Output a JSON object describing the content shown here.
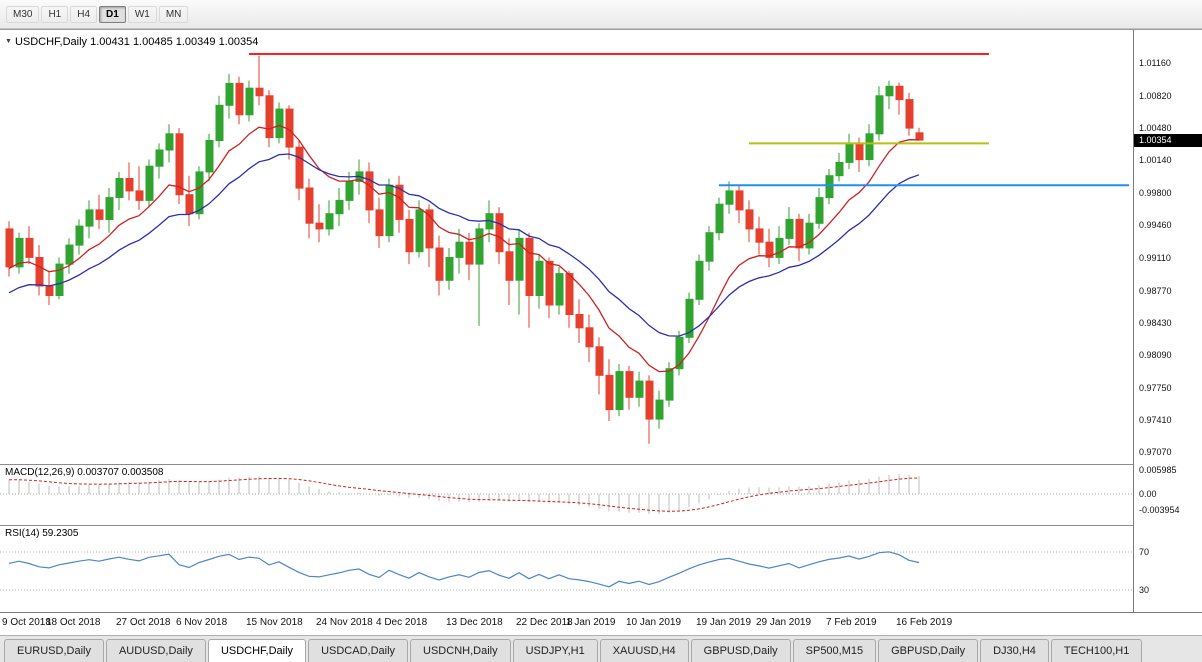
{
  "toolbar": {
    "timeframes": [
      {
        "label": "M30",
        "active": false
      },
      {
        "label": "H1",
        "active": false
      },
      {
        "label": "H4",
        "active": false
      },
      {
        "label": "D1",
        "active": true
      },
      {
        "label": "W1",
        "active": false
      },
      {
        "label": "MN",
        "active": false
      }
    ]
  },
  "chart": {
    "title_symbol": "USDCHF,Daily",
    "title_ohlc": "1.00431 1.00485 1.00349 1.00354",
    "current_price": "1.00354",
    "price_axis_labels": [
      "1.01160",
      "1.00820",
      "1.00480",
      "1.00140",
      "0.99800",
      "0.99460",
      "0.99110",
      "0.98770",
      "0.98430",
      "0.98090",
      "0.97750",
      "0.97410",
      "0.97070"
    ],
    "colors": {
      "bull": "#30a330",
      "bear": "#e5402e",
      "ma_fast": "#cc2222",
      "ma_slow": "#2f2fae",
      "hline_red": "#ff1f1f",
      "hline_yellow": "#b7bf10",
      "hline_blue": "#2090ef",
      "macd_hist": "#bcbcbc",
      "macd_signal": "#cc2222",
      "rsi": "#4a86c8",
      "badge_bg": "#000000"
    }
  },
  "macd": {
    "label": "MACD(12,26,9) 0.003707 0.003508",
    "axis_labels": [
      "0.005985",
      "0.00",
      "-0.003954"
    ],
    "params": {
      "fast": 12,
      "slow": 26,
      "signal": 9,
      "seed_fast": 0.992,
      "seed_slow": 0.988
    }
  },
  "rsi": {
    "label": "RSI(14) 59.2305",
    "axis_labels": [
      "70",
      "30"
    ],
    "levels": [
      70,
      30
    ],
    "period": 14,
    "current": 59.2305
  },
  "tabs": {
    "items": [
      {
        "label": "EURUSD,Daily",
        "active": false
      },
      {
        "label": "AUDUSD,Daily",
        "active": false
      },
      {
        "label": "USDCHF,Daily",
        "active": true
      },
      {
        "label": "USDCAD,Daily",
        "active": false
      },
      {
        "label": "USDCNH,Daily",
        "active": false
      },
      {
        "label": "USDJPY,H1",
        "active": false
      },
      {
        "label": "XAUUSD,H4",
        "active": false
      },
      {
        "label": "GBPUSD,Daily",
        "active": false
      },
      {
        "label": "SP500,M15",
        "active": false
      },
      {
        "label": "GBPUSD,Daily",
        "active": false
      },
      {
        "label": "DJ30,H4",
        "active": false
      },
      {
        "label": "TECH100,H1",
        "active": false
      }
    ]
  },
  "chart_data": {
    "type": "candlestick",
    "symbol": "USDCHF",
    "timeframe": "Daily",
    "y_axis": {
      "min": 0.9699,
      "max": 1.0147
    },
    "dates": [
      "2018.10.09",
      "2018.10.10",
      "2018.10.11",
      "2018.10.12",
      "2018.10.15",
      "2018.10.16",
      "2018.10.17",
      "2018.10.18",
      "2018.10.19",
      "2018.10.22",
      "2018.10.23",
      "2018.10.24",
      "2018.10.25",
      "2018.10.26",
      "2018.10.29",
      "2018.10.30",
      "2018.10.31",
      "2018.11.01",
      "2018.11.02",
      "2018.11.05",
      "2018.11.06",
      "2018.11.07",
      "2018.11.08",
      "2018.11.09",
      "2018.11.12",
      "2018.11.13",
      "2018.11.14",
      "2018.11.15",
      "2018.11.16",
      "2018.11.19",
      "2018.11.20",
      "2018.11.21",
      "2018.11.22",
      "2018.11.23",
      "2018.11.26",
      "2018.11.27",
      "2018.11.28",
      "2018.11.29",
      "2018.11.30",
      "2018.12.03",
      "2018.12.04",
      "2018.12.05",
      "2018.12.06",
      "2018.12.07",
      "2018.12.10",
      "2018.12.11",
      "2018.12.12",
      "2018.12.13",
      "2018.12.14",
      "2018.12.17",
      "2018.12.18",
      "2018.12.19",
      "2018.12.20",
      "2018.12.21",
      "2018.12.24",
      "2018.12.26",
      "2018.12.27",
      "2018.12.28",
      "2018.12.31",
      "2019.01.02",
      "2019.01.03",
      "2019.01.04",
      "2019.01.07",
      "2019.01.08",
      "2019.01.09",
      "2019.01.10",
      "2019.01.11",
      "2019.01.14",
      "2019.01.15",
      "2019.01.16",
      "2019.01.17",
      "2019.01.18",
      "2019.01.21",
      "2019.01.22",
      "2019.01.23",
      "2019.01.24",
      "2019.01.25",
      "2019.01.28",
      "2019.01.29",
      "2019.01.30",
      "2019.01.31",
      "2019.02.01",
      "2019.02.04",
      "2019.02.05",
      "2019.02.06",
      "2019.02.07",
      "2019.02.08",
      "2019.02.11",
      "2019.02.12",
      "2019.02.13",
      "2019.02.14",
      "2019.02.15"
    ],
    "candles": [
      [
        0.9942,
        0.995,
        0.9892,
        0.9902
      ],
      [
        0.9902,
        0.9938,
        0.9895,
        0.9932
      ],
      [
        0.9932,
        0.9945,
        0.9905,
        0.9912
      ],
      [
        0.9912,
        0.9925,
        0.9872,
        0.9882
      ],
      [
        0.9882,
        0.9898,
        0.9862,
        0.9872
      ],
      [
        0.9872,
        0.9912,
        0.9868,
        0.9905
      ],
      [
        0.9905,
        0.9932,
        0.9895,
        0.9925
      ],
      [
        0.9925,
        0.9952,
        0.9915,
        0.9945
      ],
      [
        0.9945,
        0.9972,
        0.9932,
        0.9962
      ],
      [
        0.9962,
        0.9978,
        0.9942,
        0.9952
      ],
      [
        0.9952,
        0.9985,
        0.9938,
        0.9975
      ],
      [
        0.9975,
        1.0002,
        0.9962,
        0.9995
      ],
      [
        0.9995,
        1.0012,
        0.9972,
        0.9982
      ],
      [
        0.9982,
        1.0008,
        0.9962,
        0.9972
      ],
      [
        0.9972,
        1.0015,
        0.9965,
        1.0008
      ],
      [
        1.0008,
        1.0032,
        0.9995,
        1.0025
      ],
      [
        1.0025,
        1.0052,
        1.0012,
        1.0042
      ],
      [
        1.0042,
        1.0048,
        0.9968,
        0.9978
      ],
      [
        0.9978,
        0.9998,
        0.9945,
        0.9958
      ],
      [
        0.9958,
        1.0008,
        0.9952,
        1.0002
      ],
      [
        1.0002,
        1.0042,
        0.9992,
        1.0035
      ],
      [
        1.0035,
        1.0082,
        1.0028,
        1.0072
      ],
      [
        1.0072,
        1.0105,
        1.0058,
        1.0095
      ],
      [
        1.0095,
        1.0102,
        1.0052,
        1.0062
      ],
      [
        1.0062,
        1.0098,
        1.0055,
        1.009
      ],
      [
        1.009,
        1.0124,
        1.0072,
        1.0082
      ],
      [
        1.0082,
        1.0088,
        1.0028,
        1.0038
      ],
      [
        1.0038,
        1.0075,
        1.0032,
        1.0068
      ],
      [
        1.0068,
        1.0072,
        1.0015,
        1.0028
      ],
      [
        1.0028,
        1.0035,
        0.9972,
        0.9985
      ],
      [
        0.9985,
        0.9995,
        0.9932,
        0.9948
      ],
      [
        0.9948,
        0.9968,
        0.9928,
        0.9942
      ],
      [
        0.9942,
        0.9972,
        0.9935,
        0.9958
      ],
      [
        0.9958,
        0.9985,
        0.9945,
        0.9972
      ],
      [
        0.9972,
        1.0002,
        0.9962,
        0.9992
      ],
      [
        0.9992,
        1.0015,
        0.9978,
        1.0002
      ],
      [
        1.0002,
        1.0012,
        0.9948,
        0.9962
      ],
      [
        0.9962,
        0.9975,
        0.9922,
        0.9935
      ],
      [
        0.9935,
        0.9995,
        0.9928,
        0.9988
      ],
      [
        0.9988,
        0.9998,
        0.9938,
        0.9952
      ],
      [
        0.9952,
        0.9962,
        0.9905,
        0.9918
      ],
      [
        0.9918,
        0.9972,
        0.9912,
        0.9962
      ],
      [
        0.9962,
        0.9968,
        0.9902,
        0.9922
      ],
      [
        0.9922,
        0.9935,
        0.9872,
        0.9888
      ],
      [
        0.9888,
        0.9922,
        0.9878,
        0.9912
      ],
      [
        0.9912,
        0.9942,
        0.9895,
        0.9928
      ],
      [
        0.9928,
        0.9938,
        0.9888,
        0.9905
      ],
      [
        0.9905,
        0.9948,
        0.984,
        0.9942
      ],
      [
        0.9942,
        0.9972,
        0.9928,
        0.9958
      ],
      [
        0.9958,
        0.9965,
        0.9905,
        0.9918
      ],
      [
        0.9918,
        0.9932,
        0.9862,
        0.9888
      ],
      [
        0.9888,
        0.9942,
        0.9852,
        0.9932
      ],
      [
        0.9932,
        0.9938,
        0.9838,
        0.9872
      ],
      [
        0.9872,
        0.9915,
        0.9858,
        0.9908
      ],
      [
        0.9908,
        0.9912,
        0.9848,
        0.9862
      ],
      [
        0.9862,
        0.9902,
        0.9852,
        0.9895
      ],
      [
        0.9895,
        0.9898,
        0.9838,
        0.9852
      ],
      [
        0.9852,
        0.9868,
        0.9822,
        0.9838
      ],
      [
        0.9838,
        0.9852,
        0.9802,
        0.9818
      ],
      [
        0.9818,
        0.9828,
        0.9768,
        0.9788
      ],
      [
        0.9788,
        0.9805,
        0.974,
        0.9752
      ],
      [
        0.9752,
        0.98,
        0.9745,
        0.9792
      ],
      [
        0.9792,
        0.9798,
        0.9752,
        0.9765
      ],
      [
        0.9765,
        0.9792,
        0.9755,
        0.9782
      ],
      [
        0.9782,
        0.9788,
        0.9716,
        0.9742
      ],
      [
        0.9742,
        0.9772,
        0.9732,
        0.9762
      ],
      [
        0.9762,
        0.9802,
        0.9755,
        0.9795
      ],
      [
        0.9795,
        0.9835,
        0.9788,
        0.9828
      ],
      [
        0.9828,
        0.9875,
        0.9822,
        0.9868
      ],
      [
        0.9868,
        0.9915,
        0.9862,
        0.9908
      ],
      [
        0.9908,
        0.9945,
        0.9898,
        0.9938
      ],
      [
        0.9938,
        0.9975,
        0.993,
        0.9968
      ],
      [
        0.9968,
        0.9992,
        0.9958,
        0.9982
      ],
      [
        0.9982,
        0.9988,
        0.9948,
        0.9962
      ],
      [
        0.9962,
        0.9972,
        0.9928,
        0.9942
      ],
      [
        0.9942,
        0.9955,
        0.9915,
        0.9928
      ],
      [
        0.9928,
        0.9942,
        0.9902,
        0.9912
      ],
      [
        0.9912,
        0.9945,
        0.9905,
        0.9932
      ],
      [
        0.9932,
        0.9965,
        0.9925,
        0.9952
      ],
      [
        0.9952,
        0.9958,
        0.9908,
        0.9922
      ],
      [
        0.9922,
        0.9958,
        0.9915,
        0.9948
      ],
      [
        0.9948,
        0.9985,
        0.9942,
        0.9975
      ],
      [
        0.9975,
        1.0005,
        0.9968,
        0.9998
      ],
      [
        0.9998,
        1.0022,
        0.9992,
        1.0012
      ],
      [
        1.0012,
        1.0042,
        1.0005,
        1.0032
      ],
      [
        1.0032,
        1.0038,
        1.0002,
        1.0015
      ],
      [
        1.0015,
        1.0052,
        1.0008,
        1.0042
      ],
      [
        1.0042,
        1.0092,
        1.0035,
        1.0082
      ],
      [
        1.0082,
        1.0098,
        1.0068,
        1.0092
      ],
      [
        1.0092,
        1.0096,
        1.0062,
        1.0078
      ],
      [
        1.0078,
        1.0085,
        1.004,
        1.0048
      ],
      [
        1.00431,
        1.00485,
        1.00349,
        1.00354
      ]
    ],
    "overlays": {
      "ma_fast": {
        "type": "EMA",
        "period": 10,
        "seed": 0.99,
        "color": "#cc2222"
      },
      "ma_slow": {
        "type": "EMA",
        "period": 20,
        "seed": 0.9872,
        "color": "#2f2fae"
      },
      "hlines": [
        {
          "name": "resistance-line",
          "price": 1.0126,
          "color": "#ff1f1f",
          "width": 2,
          "from_bar": 24,
          "to_bar": 98
        },
        {
          "name": "yellow-support-line",
          "price": 1.0032,
          "color": "#b7bf10",
          "width": 2,
          "from_bar": 74,
          "to_bar": 98
        },
        {
          "name": "blue-support-line",
          "price": 0.9988,
          "color": "#2090ef",
          "width": 2,
          "from_bar": 71,
          "to_bar": 112
        }
      ]
    },
    "date_labels": [
      {
        "label": "9 Oct 2018",
        "bar": 0
      },
      {
        "label": "18 Oct 2018",
        "bar": 7
      },
      {
        "label": "27 Oct 2018",
        "bar": 14
      },
      {
        "label": "6 Nov 2018",
        "bar": 20
      },
      {
        "label": "15 Nov 2018",
        "bar": 27
      },
      {
        "label": "24 Nov 2018",
        "bar": 34
      },
      {
        "label": "4 Dec 2018",
        "bar": 40
      },
      {
        "label": "13 Dec 2018",
        "bar": 47
      },
      {
        "label": "22 Dec 2018",
        "bar": 54
      },
      {
        "label": "1 Jan 2019",
        "bar": 59
      },
      {
        "label": "10 Jan 2019",
        "bar": 65
      },
      {
        "label": "19 Jan 2019",
        "bar": 72
      },
      {
        "label": "29 Jan 2019",
        "bar": 78
      },
      {
        "label": "7 Feb 2019",
        "bar": 85
      },
      {
        "label": "16 Feb 2019",
        "bar": 92
      }
    ]
  }
}
